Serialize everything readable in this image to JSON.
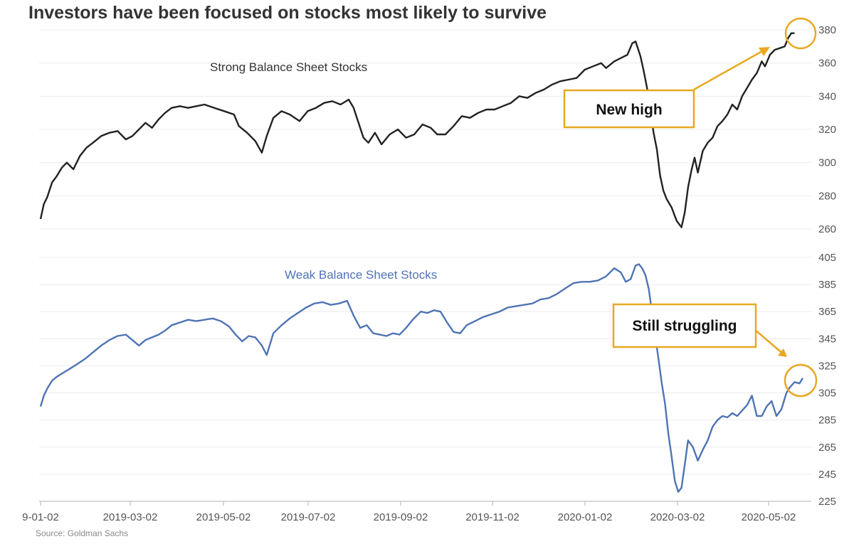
{
  "chart_data": {
    "type": "line",
    "title": "Investors have been focused on stocks most likely to survive",
    "source": "Source: Goldman Sachs",
    "x_ticks": [
      "9-01-02",
      "2019-03-02",
      "2019-05-02",
      "2019-07-02",
      "2019-09-02",
      "2019-11-02",
      "2020-01-02",
      "2020-03-02",
      "2020-05-02"
    ],
    "panels": [
      {
        "name": "Strong Balance Sheet Stocks",
        "color": "#222222",
        "y_ticks": [
          260,
          280,
          300,
          320,
          340,
          360,
          380
        ],
        "ylim": [
          260,
          380
        ],
        "points": [
          [
            0,
            266
          ],
          [
            2,
            275
          ],
          [
            4,
            279
          ],
          [
            7,
            288
          ],
          [
            10,
            292
          ],
          [
            13,
            297
          ],
          [
            16,
            300
          ],
          [
            20,
            296
          ],
          [
            24,
            304
          ],
          [
            28,
            309
          ],
          [
            32,
            312
          ],
          [
            37,
            316
          ],
          [
            42,
            318
          ],
          [
            47,
            319
          ],
          [
            52,
            314
          ],
          [
            56,
            316
          ],
          [
            60,
            320
          ],
          [
            64,
            324
          ],
          [
            68,
            321
          ],
          [
            72,
            326
          ],
          [
            76,
            330
          ],
          [
            80,
            333
          ],
          [
            85,
            334
          ],
          [
            90,
            333
          ],
          [
            95,
            334
          ],
          [
            100,
            335
          ],
          [
            106,
            333
          ],
          [
            112,
            331
          ],
          [
            118,
            329
          ],
          [
            121,
            322
          ],
          [
            126,
            318
          ],
          [
            131,
            313
          ],
          [
            135,
            306
          ],
          [
            138,
            316
          ],
          [
            142,
            327
          ],
          [
            147,
            331
          ],
          [
            152,
            329
          ],
          [
            158,
            325
          ],
          [
            163,
            331
          ],
          [
            168,
            333
          ],
          [
            173,
            336
          ],
          [
            178,
            337
          ],
          [
            183,
            335
          ],
          [
            188,
            338
          ],
          [
            191,
            333
          ],
          [
            194,
            324
          ],
          [
            197,
            315
          ],
          [
            200,
            312
          ],
          [
            204,
            318
          ],
          [
            208,
            311
          ],
          [
            213,
            317
          ],
          [
            218,
            320
          ],
          [
            223,
            315
          ],
          [
            228,
            317
          ],
          [
            233,
            323
          ],
          [
            238,
            321
          ],
          [
            242,
            317
          ],
          [
            247,
            317
          ],
          [
            252,
            322
          ],
          [
            257,
            328
          ],
          [
            262,
            327
          ],
          [
            267,
            330
          ],
          [
            272,
            332
          ],
          [
            277,
            332
          ],
          [
            282,
            334
          ],
          [
            287,
            336
          ],
          [
            292,
            340
          ],
          [
            297,
            339
          ],
          [
            302,
            342
          ],
          [
            307,
            344
          ],
          [
            312,
            347
          ],
          [
            317,
            349
          ],
          [
            322,
            350
          ],
          [
            327,
            351
          ],
          [
            332,
            356
          ],
          [
            337,
            358
          ],
          [
            342,
            360
          ],
          [
            345,
            357
          ],
          [
            350,
            361
          ],
          [
            354,
            363
          ],
          [
            358,
            365
          ],
          [
            361,
            372
          ],
          [
            363,
            373
          ],
          [
            366,
            364
          ],
          [
            368,
            355
          ],
          [
            370,
            345
          ],
          [
            372,
            331
          ],
          [
            374,
            318
          ],
          [
            376,
            308
          ],
          [
            378,
            292
          ],
          [
            380,
            283
          ],
          [
            382,
            278
          ],
          [
            385,
            273
          ],
          [
            388,
            265
          ],
          [
            391,
            261
          ],
          [
            393,
            270
          ],
          [
            395,
            285
          ],
          [
            397,
            295
          ],
          [
            399,
            303
          ],
          [
            401,
            294
          ],
          [
            404,
            307
          ],
          [
            407,
            312
          ],
          [
            410,
            315
          ],
          [
            413,
            322
          ],
          [
            416,
            325
          ],
          [
            419,
            329
          ],
          [
            422,
            335
          ],
          [
            425,
            332
          ],
          [
            428,
            340
          ],
          [
            431,
            345
          ],
          [
            434,
            350
          ],
          [
            437,
            354
          ],
          [
            440,
            361
          ],
          [
            442,
            358
          ],
          [
            445,
            365
          ],
          [
            448,
            368
          ],
          [
            451,
            369
          ],
          [
            454,
            370
          ],
          [
            456,
            375
          ],
          [
            458,
            378
          ],
          [
            460,
            378
          ]
        ]
      },
      {
        "name": "Weak Balance Sheet Stocks",
        "color": "#4f74b5",
        "y_ticks": [
          225,
          245,
          265,
          285,
          305,
          325,
          345,
          365,
          385,
          405
        ],
        "ylim": [
          225,
          405
        ],
        "points": [
          [
            0,
            295
          ],
          [
            2,
            303
          ],
          [
            4,
            308
          ],
          [
            7,
            314
          ],
          [
            10,
            317
          ],
          [
            14,
            320
          ],
          [
            18,
            323
          ],
          [
            22,
            326
          ],
          [
            27,
            330
          ],
          [
            32,
            335
          ],
          [
            37,
            340
          ],
          [
            42,
            344
          ],
          [
            47,
            347
          ],
          [
            52,
            348
          ],
          [
            56,
            344
          ],
          [
            60,
            340
          ],
          [
            64,
            344
          ],
          [
            68,
            346
          ],
          [
            72,
            348
          ],
          [
            76,
            351
          ],
          [
            80,
            355
          ],
          [
            85,
            357
          ],
          [
            90,
            359
          ],
          [
            95,
            358
          ],
          [
            100,
            359
          ],
          [
            105,
            360
          ],
          [
            110,
            358
          ],
          [
            115,
            354
          ],
          [
            119,
            348
          ],
          [
            123,
            343
          ],
          [
            127,
            347
          ],
          [
            131,
            346
          ],
          [
            135,
            340
          ],
          [
            138,
            333
          ],
          [
            142,
            349
          ],
          [
            147,
            355
          ],
          [
            152,
            360
          ],
          [
            157,
            364
          ],
          [
            162,
            368
          ],
          [
            167,
            371
          ],
          [
            172,
            372
          ],
          [
            177,
            370
          ],
          [
            182,
            371
          ],
          [
            187,
            373
          ],
          [
            191,
            362
          ],
          [
            195,
            353
          ],
          [
            199,
            355
          ],
          [
            203,
            349
          ],
          [
            207,
            348
          ],
          [
            211,
            347
          ],
          [
            215,
            349
          ],
          [
            219,
            348
          ],
          [
            223,
            353
          ],
          [
            227,
            359
          ],
          [
            232,
            365
          ],
          [
            236,
            364
          ],
          [
            240,
            366
          ],
          [
            244,
            365
          ],
          [
            248,
            357
          ],
          [
            252,
            350
          ],
          [
            256,
            349
          ],
          [
            260,
            355
          ],
          [
            265,
            358
          ],
          [
            270,
            361
          ],
          [
            275,
            363
          ],
          [
            280,
            365
          ],
          [
            285,
            368
          ],
          [
            290,
            369
          ],
          [
            295,
            370
          ],
          [
            300,
            371
          ],
          [
            305,
            374
          ],
          [
            310,
            375
          ],
          [
            315,
            378
          ],
          [
            320,
            382
          ],
          [
            325,
            386
          ],
          [
            330,
            387
          ],
          [
            335,
            387
          ],
          [
            340,
            388
          ],
          [
            345,
            391
          ],
          [
            350,
            397
          ],
          [
            354,
            394
          ],
          [
            357,
            387
          ],
          [
            360,
            389
          ],
          [
            363,
            399
          ],
          [
            365,
            400
          ],
          [
            367,
            397
          ],
          [
            369,
            392
          ],
          [
            371,
            382
          ],
          [
            373,
            365
          ],
          [
            375,
            347
          ],
          [
            377,
            330
          ],
          [
            379,
            312
          ],
          [
            381,
            297
          ],
          [
            383,
            275
          ],
          [
            385,
            258
          ],
          [
            387,
            240
          ],
          [
            389,
            232
          ],
          [
            391,
            235
          ],
          [
            393,
            252
          ],
          [
            395,
            270
          ],
          [
            398,
            265
          ],
          [
            401,
            255
          ],
          [
            404,
            263
          ],
          [
            407,
            270
          ],
          [
            410,
            280
          ],
          [
            413,
            285
          ],
          [
            416,
            288
          ],
          [
            419,
            287
          ],
          [
            422,
            290
          ],
          [
            425,
            288
          ],
          [
            428,
            292
          ],
          [
            431,
            296
          ],
          [
            434,
            303
          ],
          [
            437,
            288
          ],
          [
            440,
            288
          ],
          [
            443,
            295
          ],
          [
            446,
            299
          ],
          [
            449,
            288
          ],
          [
            452,
            293
          ],
          [
            455,
            305
          ],
          [
            457,
            309
          ],
          [
            460,
            313
          ],
          [
            463,
            312
          ],
          [
            465,
            316
          ]
        ]
      }
    ],
    "annotations": [
      {
        "text": "New high",
        "color": "#e8a820"
      },
      {
        "text": "Still struggling",
        "color": "#e8a820"
      }
    ]
  }
}
